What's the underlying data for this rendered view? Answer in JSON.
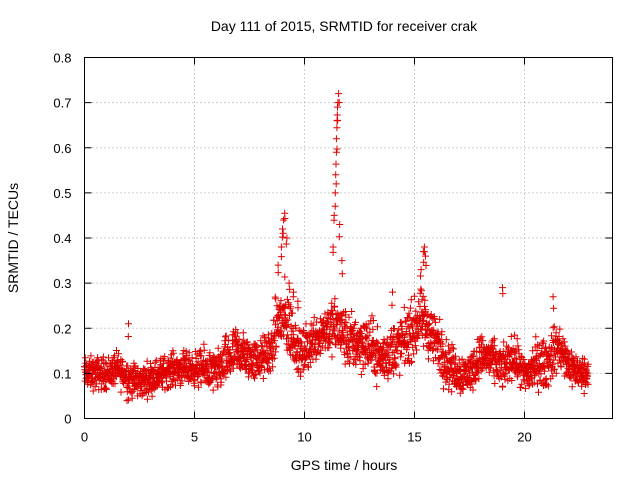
{
  "chart_data": {
    "type": "scatter",
    "title": "Day 111 of 2015, SRMTID for receiver crak",
    "xlabel": "GPS time / hours",
    "ylabel": "SRMTID / TECUs",
    "xlim": [
      0,
      24
    ],
    "ylim": [
      0,
      0.8
    ],
    "xticks": [
      0,
      5,
      10,
      15,
      20
    ],
    "yticks": [
      0,
      0.1,
      0.2,
      0.3,
      0.4,
      0.5,
      0.6,
      0.7,
      0.8
    ],
    "ytick_labels": [
      "0",
      "0.1",
      "0.2",
      "0.3",
      "0.4",
      "0.5",
      "0.6",
      "0.7",
      "0.8"
    ],
    "grid": true,
    "marker": "+",
    "color": "#e00000",
    "x_range_of_data": [
      0,
      22.9
    ],
    "series": [
      {
        "name": "SRMTID",
        "profile_x": [
          0,
          0.5,
          1,
          1.5,
          2,
          2.5,
          3,
          3.5,
          4,
          4.5,
          5,
          5.5,
          6,
          6.5,
          7,
          7.5,
          8,
          8.5,
          8.8,
          9.0,
          9.2,
          9.5,
          9.8,
          10,
          10.5,
          11,
          11.3,
          11.5,
          11.7,
          12,
          12.5,
          13,
          13.5,
          14,
          14.5,
          15,
          15.3,
          15.6,
          16,
          16.5,
          17,
          17.5,
          18,
          18.5,
          19,
          19.5,
          20,
          20.5,
          21,
          21.5,
          22,
          22.5,
          22.9
        ],
        "profile_center": [
          0.1,
          0.1,
          0.1,
          0.11,
          0.09,
          0.08,
          0.09,
          0.1,
          0.11,
          0.11,
          0.11,
          0.11,
          0.1,
          0.13,
          0.15,
          0.13,
          0.13,
          0.15,
          0.22,
          0.22,
          0.21,
          0.18,
          0.14,
          0.15,
          0.18,
          0.2,
          0.2,
          0.2,
          0.19,
          0.17,
          0.17,
          0.16,
          0.13,
          0.15,
          0.17,
          0.2,
          0.22,
          0.2,
          0.17,
          0.12,
          0.1,
          0.1,
          0.14,
          0.13,
          0.11,
          0.14,
          0.09,
          0.12,
          0.12,
          0.16,
          0.12,
          0.1,
          0.1
        ],
        "profile_spread": [
          0.04,
          0.04,
          0.04,
          0.04,
          0.05,
          0.04,
          0.04,
          0.04,
          0.04,
          0.04,
          0.04,
          0.05,
          0.05,
          0.06,
          0.06,
          0.05,
          0.05,
          0.06,
          0.08,
          0.09,
          0.09,
          0.07,
          0.05,
          0.06,
          0.06,
          0.06,
          0.07,
          0.07,
          0.07,
          0.07,
          0.07,
          0.07,
          0.06,
          0.07,
          0.07,
          0.07,
          0.07,
          0.07,
          0.07,
          0.06,
          0.05,
          0.05,
          0.05,
          0.05,
          0.05,
          0.05,
          0.05,
          0.06,
          0.06,
          0.06,
          0.05,
          0.04,
          0.04
        ],
        "point_count": 2300,
        "peaks": [
          {
            "x": 8.8,
            "y": 0.34
          },
          {
            "x": 8.95,
            "y": 0.38
          },
          {
            "x": 9.0,
            "y": 0.42
          },
          {
            "x": 9.05,
            "y": 0.44
          },
          {
            "x": 9.1,
            "y": 0.455
          },
          {
            "x": 9.2,
            "y": 0.4
          },
          {
            "x": 9.3,
            "y": 0.3
          },
          {
            "x": 9.5,
            "y": 0.28
          },
          {
            "x": 9.7,
            "y": 0.26
          },
          {
            "x": 11.3,
            "y": 0.38
          },
          {
            "x": 11.35,
            "y": 0.45
          },
          {
            "x": 11.4,
            "y": 0.5
          },
          {
            "x": 11.42,
            "y": 0.54
          },
          {
            "x": 11.45,
            "y": 0.59
          },
          {
            "x": 11.45,
            "y": 0.62
          },
          {
            "x": 11.48,
            "y": 0.66
          },
          {
            "x": 11.5,
            "y": 0.69
          },
          {
            "x": 11.52,
            "y": 0.7
          },
          {
            "x": 11.55,
            "y": 0.72
          },
          {
            "x": 11.6,
            "y": 0.43
          },
          {
            "x": 11.7,
            "y": 0.35
          },
          {
            "x": 15.3,
            "y": 0.33
          },
          {
            "x": 15.4,
            "y": 0.37
          },
          {
            "x": 15.45,
            "y": 0.38
          },
          {
            "x": 15.5,
            "y": 0.36
          },
          {
            "x": 14.0,
            "y": 0.28
          },
          {
            "x": 19.0,
            "y": 0.29
          },
          {
            "x": 21.3,
            "y": 0.27
          },
          {
            "x": 2.0,
            "y": 0.21
          }
        ]
      }
    ]
  }
}
